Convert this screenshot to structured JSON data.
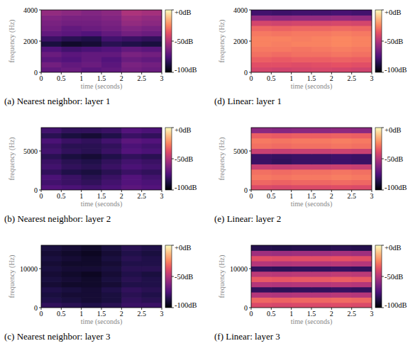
{
  "chart_data": [
    {
      "type": "heatmap",
      "title": "(a) Nearest neighbor: layer 1",
      "x_label": "time (seconds)",
      "y_label": "frequency (Hz)",
      "xlim": [
        0,
        3
      ],
      "xticks": [
        0,
        0.5,
        1,
        1.5,
        2,
        2.5,
        3
      ],
      "ylim": [
        0,
        4000
      ],
      "yticks": [
        0,
        2000,
        4000
      ],
      "cells": [
        [
          -70,
          -68,
          -72,
          -70,
          -66,
          -68
        ],
        [
          -66,
          -70,
          -68,
          -72,
          -64,
          -66
        ],
        [
          -72,
          -74,
          -70,
          -74,
          -68,
          -70
        ],
        [
          -68,
          -72,
          -70,
          -70,
          -64,
          -66
        ],
        [
          -74,
          -78,
          -76,
          -74,
          -70,
          -72
        ],
        [
          -88,
          -92,
          -90,
          -84,
          -86,
          -88
        ],
        [
          -80,
          -84,
          -86,
          -78,
          -80,
          -82
        ],
        [
          -70,
          -72,
          -74,
          -70,
          -66,
          -68
        ],
        [
          -66,
          -70,
          -68,
          -66,
          -62,
          -64
        ],
        [
          -64,
          -66,
          -66,
          -64,
          -58,
          -60
        ],
        [
          -62,
          -64,
          -64,
          -62,
          -56,
          -58
        ],
        [
          -58,
          -60,
          -62,
          -60,
          -52,
          -54
        ]
      ],
      "colorbar_range": [
        -100,
        0
      ],
      "colorbar_ticks": [
        {
          "value": 0,
          "label": "+0dB"
        },
        {
          "value": -50,
          "label": "-50dB"
        },
        {
          "value": -100,
          "label": "-100dB"
        }
      ]
    },
    {
      "type": "heatmap",
      "title": "(b) Nearest neighbor: layer 2",
      "x_label": "time (seconds)",
      "y_label": "frequency (Hz)",
      "xlim": [
        0,
        3
      ],
      "xticks": [
        0,
        0.5,
        1,
        1.5,
        2,
        2.5,
        3
      ],
      "ylim": [
        0,
        8000
      ],
      "yticks": [
        0,
        5000
      ],
      "cells": [
        [
          -74,
          -76,
          -78,
          -76,
          -72,
          -74
        ],
        [
          -78,
          -80,
          -82,
          -78,
          -74,
          -76
        ],
        [
          -76,
          -80,
          -84,
          -80,
          -74,
          -78
        ],
        [
          -82,
          -86,
          -88,
          -84,
          -80,
          -82
        ],
        [
          -78,
          -82,
          -84,
          -80,
          -76,
          -78
        ],
        [
          -80,
          -84,
          -86,
          -82,
          -78,
          -80
        ],
        [
          -84,
          -88,
          -90,
          -86,
          -82,
          -84
        ],
        [
          -78,
          -82,
          -84,
          -80,
          -74,
          -76
        ],
        [
          -80,
          -84,
          -84,
          -82,
          -76,
          -78
        ],
        [
          -76,
          -80,
          -82,
          -78,
          -72,
          -74
        ],
        [
          -84,
          -88,
          -90,
          -86,
          -80,
          -82
        ],
        [
          -78,
          -82,
          -82,
          -80,
          -74,
          -76
        ]
      ],
      "colorbar_range": [
        -100,
        0
      ],
      "colorbar_ticks": [
        {
          "value": 0,
          "label": "+0dB"
        },
        {
          "value": -50,
          "label": "-50dB"
        },
        {
          "value": -100,
          "label": "-100dB"
        }
      ]
    },
    {
      "type": "heatmap",
      "title": "(c) Nearest neighbor: layer 3",
      "x_label": "time (seconds)",
      "y_label": "frequency (Hz)",
      "xlim": [
        0,
        3
      ],
      "xticks": [
        0,
        0.5,
        1,
        1.5,
        2,
        2.5,
        3
      ],
      "ylim": [
        0,
        16000
      ],
      "yticks": [
        0,
        10000
      ],
      "cells": [
        [
          -82,
          -84,
          -86,
          -84,
          -80,
          -80
        ],
        [
          -86,
          -88,
          -90,
          -88,
          -82,
          -84
        ],
        [
          -88,
          -90,
          -90,
          -88,
          -84,
          -86
        ],
        [
          -86,
          -88,
          -90,
          -86,
          -82,
          -84
        ],
        [
          -90,
          -92,
          -92,
          -90,
          -86,
          -86
        ],
        [
          -88,
          -90,
          -92,
          -88,
          -84,
          -86
        ],
        [
          -90,
          -92,
          -94,
          -90,
          -86,
          -88
        ],
        [
          -88,
          -90,
          -90,
          -88,
          -84,
          -84
        ],
        [
          -90,
          -92,
          -92,
          -90,
          -86,
          -86
        ],
        [
          -88,
          -90,
          -92,
          -88,
          -84,
          -86
        ],
        [
          -90,
          -92,
          -94,
          -90,
          -86,
          -88
        ],
        [
          -88,
          -90,
          -92,
          -88,
          -84,
          -86
        ]
      ],
      "colorbar_range": [
        -100,
        0
      ],
      "colorbar_ticks": [
        {
          "value": 0,
          "label": "+0dB"
        },
        {
          "value": -50,
          "label": "-50dB"
        },
        {
          "value": -100,
          "label": "-100dB"
        }
      ]
    },
    {
      "type": "heatmap",
      "title": "(d) Linear: layer 1",
      "x_label": "time (seconds)",
      "y_label": "frequency (Hz)",
      "xlim": [
        0,
        3
      ],
      "xticks": [
        0,
        0.5,
        1,
        1.5,
        2,
        2.5,
        3
      ],
      "ylim": [
        0,
        4000
      ],
      "yticks": [
        0,
        2000,
        4000
      ],
      "cells": [
        [
          -42,
          -43,
          -42,
          -41,
          -42,
          -43
        ],
        [
          -38,
          -38,
          -39,
          -38,
          -37,
          -38
        ],
        [
          -34,
          -35,
          -34,
          -34,
          -33,
          -34
        ],
        [
          -30,
          -31,
          -30,
          -30,
          -29,
          -30
        ],
        [
          -28,
          -28,
          -29,
          -28,
          -27,
          -28
        ],
        [
          -26,
          -27,
          -26,
          -26,
          -25,
          -26
        ],
        [
          -26,
          -26,
          -27,
          -26,
          -25,
          -26
        ],
        [
          -28,
          -29,
          -28,
          -28,
          -27,
          -28
        ],
        [
          -32,
          -33,
          -32,
          -32,
          -31,
          -32
        ],
        [
          -42,
          -43,
          -42,
          -42,
          -41,
          -42
        ],
        [
          -58,
          -59,
          -58,
          -58,
          -57,
          -58
        ],
        [
          -78,
          -79,
          -78,
          -78,
          -77,
          -78
        ]
      ],
      "colorbar_range": [
        -100,
        0
      ],
      "colorbar_ticks": [
        {
          "value": 0,
          "label": "+0dB"
        },
        {
          "value": -50,
          "label": "-50dB"
        },
        {
          "value": -100,
          "label": "-100dB"
        }
      ]
    },
    {
      "type": "heatmap",
      "title": "(e) Linear: layer 2",
      "x_label": "time (seconds)",
      "y_label": "frequency (Hz)",
      "xlim": [
        0,
        3
      ],
      "xticks": [
        0,
        0.5,
        1,
        1.5,
        2,
        2.5,
        3
      ],
      "ylim": [
        0,
        8000
      ],
      "yticks": [
        0,
        5000
      ],
      "cells": [
        [
          -40,
          -41,
          -40,
          -40,
          -39,
          -40
        ],
        [
          -32,
          -33,
          -32,
          -32,
          -31,
          -32
        ],
        [
          -28,
          -29,
          -28,
          -28,
          -27,
          -28
        ],
        [
          -30,
          -31,
          -30,
          -30,
          -29,
          -30
        ],
        [
          -45,
          -46,
          -45,
          -45,
          -44,
          -45
        ],
        [
          -80,
          -82,
          -80,
          -80,
          -79,
          -80
        ],
        [
          -80,
          -81,
          -80,
          -80,
          -79,
          -80
        ],
        [
          -45,
          -46,
          -45,
          -45,
          -44,
          -45
        ],
        [
          -30,
          -31,
          -30,
          -30,
          -29,
          -30
        ],
        [
          -28,
          -29,
          -28,
          -28,
          -27,
          -28
        ],
        [
          -34,
          -35,
          -34,
          -34,
          -33,
          -34
        ],
        [
          -60,
          -61,
          -60,
          -60,
          -59,
          -60
        ]
      ],
      "colorbar_range": [
        -100,
        0
      ],
      "colorbar_ticks": [
        {
          "value": 0,
          "label": "+0dB"
        },
        {
          "value": -50,
          "label": "-50dB"
        },
        {
          "value": -100,
          "label": "-100dB"
        }
      ]
    },
    {
      "type": "heatmap",
      "title": "(f) Linear: layer 3",
      "x_label": "time (seconds)",
      "y_label": "frequency (Hz)",
      "xlim": [
        0,
        3
      ],
      "xticks": [
        0,
        0.5,
        1,
        1.5,
        2,
        2.5,
        3
      ],
      "ylim": [
        0,
        16000
      ],
      "yticks": [
        0,
        10000
      ],
      "cells": [
        [
          -40,
          -41,
          -40,
          -40,
          -39,
          -40
        ],
        [
          -32,
          -33,
          -32,
          -32,
          -31,
          -32
        ],
        [
          -50,
          -51,
          -50,
          -50,
          -49,
          -50
        ],
        [
          -82,
          -83,
          -82,
          -82,
          -81,
          -82
        ],
        [
          -50,
          -51,
          -50,
          -50,
          -49,
          -50
        ],
        [
          -35,
          -36,
          -35,
          -35,
          -34,
          -35
        ],
        [
          -48,
          -49,
          -48,
          -48,
          -47,
          -48
        ],
        [
          -82,
          -83,
          -82,
          -82,
          -81,
          -82
        ],
        [
          -50,
          -51,
          -50,
          -50,
          -49,
          -50
        ],
        [
          -38,
          -39,
          -38,
          -38,
          -37,
          -38
        ],
        [
          -55,
          -56,
          -55,
          -55,
          -54,
          -55
        ],
        [
          -85,
          -86,
          -85,
          -85,
          -84,
          -85
        ]
      ],
      "colorbar_range": [
        -100,
        0
      ],
      "colorbar_ticks": [
        {
          "value": 0,
          "label": "+0dB"
        },
        {
          "value": -50,
          "label": "-50dB"
        },
        {
          "value": -100,
          "label": "-100dB"
        }
      ]
    }
  ]
}
